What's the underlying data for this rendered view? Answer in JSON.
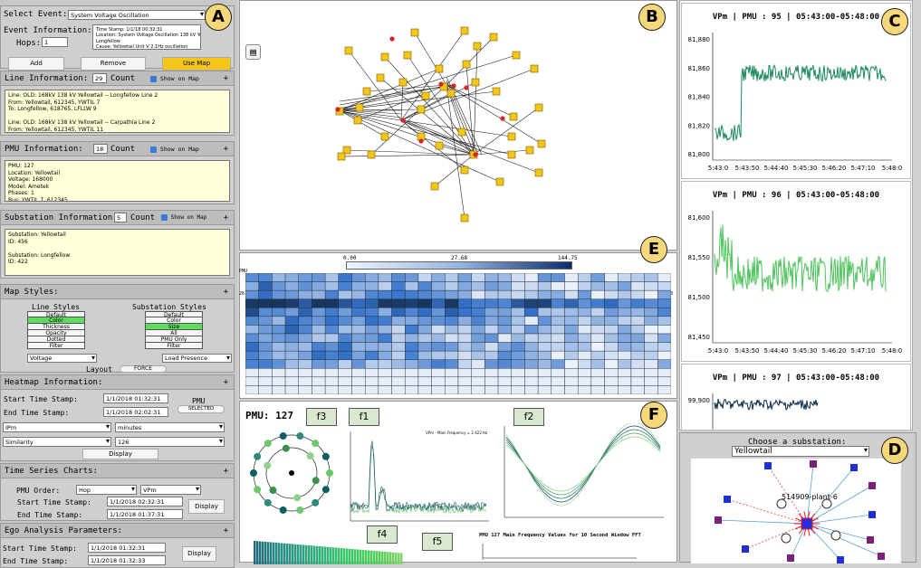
{
  "labels": {
    "a": "A",
    "b": "B",
    "c": "C",
    "d": "D",
    "e": "E",
    "f": "F"
  },
  "event": {
    "select_label": "Select Event:",
    "select_value": "System Voltage Oscillation",
    "info_label": "Event Information:",
    "info_text": "Time Stamp: 1/1/18 00:32:31\nLocation: System Voltage Oscillation 138 kV Yellowtail-\nLongfellow\nCause: Yellowtail Unit V 2.1Hz oscillation",
    "hops_label": "Hops:",
    "hops_value": "1",
    "add": "Add",
    "remove": "Remove",
    "use_map": "Use Map"
  },
  "line_info": {
    "title": "Line Information:",
    "count": "29",
    "count_label": "Count",
    "show": "Show on Map",
    "text": "Line: OLD: 168kV 138 kV Yellowtail -- Longfellow Line 2\nFrom: Yellowtail, 612345, YWTIL 7\nTo: Longfellow, 618765, LFLLW 9\n\nLine: OLD: 168kV 138 kV Yellowtail -- Carpathia Line 2\nFrom: Yellowtail, 612345, YWTIL 11"
  },
  "pmu_info": {
    "title": "PMU Information:",
    "count": "18",
    "count_label": "Count",
    "show": "Show on Map",
    "text": "PMU: 127\nLocation: Yellowtail\nVoltage: 168000\nModel: Ametek\nPhases: 1\nBus: YWTIL 7, 612345"
  },
  "sub_info": {
    "title": "Substation Information:",
    "count": "5",
    "count_label": "Count",
    "show": "Show on Map",
    "text": "Substation: Yellowtail\nID: 456\n\nSubstation: Longfellow\nID: 422"
  },
  "map_styles": {
    "title": "Map Styles:",
    "line_styles": "Line Styles",
    "sub_styles": "Substation Styles",
    "line_opts": [
      "Default",
      "Color",
      "Thickness",
      "Opacity",
      "Dotted",
      "Filter"
    ],
    "sub_opts": [
      "Default",
      "Color",
      "Size",
      "All",
      "PMU Only",
      "Filter"
    ],
    "line_sel": "Voltage",
    "sub_sel": "Load Presence",
    "layout": "Layout",
    "force": "FORCE"
  },
  "heatmap": {
    "title": "Heatmap Information:",
    "start_label": "Start Time Stamp:",
    "start": "1/1/2018 01:32:31",
    "end_label": "End Time Stamp:",
    "end": "1/1/2018 02:02:31",
    "pmu": "PMU",
    "selected": "SELECTED",
    "m1": "IPm",
    "m2": "minutes",
    "m3": "Similarity",
    "m4": "126",
    "display": "Display"
  },
  "ts": {
    "title": "Time Series Charts:",
    "order_label": "PMU Order:",
    "order": "Hop",
    "var": "VPm",
    "start_label": "Start Time Stamp:",
    "start": "1/1/2018 02:32:31",
    "end_label": "End Time Stamp:",
    "end": "1/1/2018 01:37:31",
    "display": "Display"
  },
  "ego": {
    "title": "Ego Analysis Parameters:",
    "start_label": "Start Time Stamp:",
    "start": "1/1/2018 01:32:31",
    "end_label": "End Time Stamp:",
    "end": "1/1/2018 01:32:33",
    "display": "Display"
  },
  "charts": [
    {
      "title": "VPm | PMU : 95 | 05:43:00-05:48:00",
      "ticks": [
        "81,880",
        "81,860",
        "81,840",
        "81,820",
        "81,800"
      ],
      "x": [
        "5:43:0",
        "5:43:50",
        "5:44:40",
        "5:45:30",
        "5:46:20",
        "5:47:10",
        "5:48:0"
      ],
      "color": "#1b8a5a"
    },
    {
      "title": "VPm | PMU : 96 | 05:43:00-05:48:00",
      "ticks": [
        "81,600",
        "81,550",
        "81,500",
        "81,450"
      ],
      "x": [
        "5:43:0",
        "5:43:50",
        "5:44:40",
        "5:45:30",
        "5:46:20",
        "5:47:10",
        "5:48:0"
      ],
      "color": "#4cc45a"
    },
    {
      "title": "VPm | PMU : 97 | 05:43:00-05:48:00",
      "ticks": [
        "99,900"
      ],
      "color": "#0d2a4a"
    }
  ],
  "heat": {
    "scale": [
      "0.00",
      "27.68",
      "144.75"
    ],
    "pmu_lbl": "PMU",
    "left_tick": "26",
    "right_tick": "3"
  },
  "fpanel": {
    "pmu": "PMU: 127",
    "tags": [
      "f3",
      "f1",
      "f2",
      "f4",
      "f5"
    ],
    "f1_title": "VPm - Main Frequency = 2.422 Hz",
    "f5_title": "PMU 127 Main Frequency Values for 10 Second Window FFT"
  },
  "substation": {
    "label": "Choose a substation:",
    "value": "Yellowtail",
    "node": "514909-plant-6"
  }
}
